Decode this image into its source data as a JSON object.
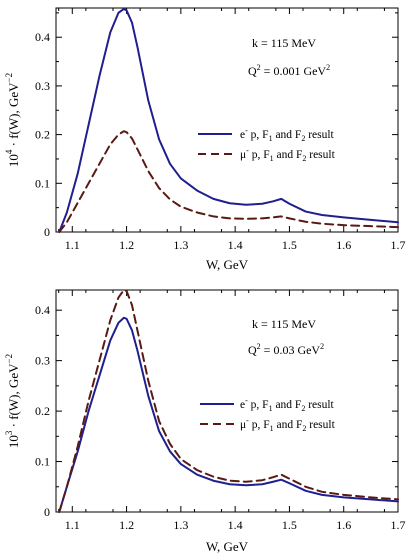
{
  "colors": {
    "ep": "#1f1f8f",
    "mup": "#5a1a14"
  },
  "chart_data": [
    {
      "type": "line",
      "xlabel": "W, GeV",
      "ylabel_prefix": "10",
      "ylabel_exp": "4",
      "ylabel_rest": " · f(W),  GeV",
      "ylabel_unit_exp": "−2",
      "xlim": [
        1.07,
        1.7
      ],
      "ylim": [
        0,
        0.46
      ],
      "xticks": [
        1.1,
        1.2,
        1.3,
        1.4,
        1.5,
        1.6,
        1.7
      ],
      "xtick_labels": [
        "1.1",
        "1.2",
        "1.3",
        "1.4",
        "1.5",
        "1.6",
        "1.7"
      ],
      "yticks": [
        0,
        0.1,
        0.2,
        0.3,
        0.4
      ],
      "ytick_labels": [
        "0",
        "0.1",
        "0.2",
        "0.3",
        "0.4"
      ],
      "annotations": {
        "k": "k = 115 MeV",
        "q_pre": "Q",
        "q_sup": "2",
        "q_mid": " = 0.001 GeV",
        "q_unit_sup": "2"
      },
      "series": [
        {
          "name": "e⁻ p, F₁ and F₂ result",
          "legend_a": "e",
          "legend_a_sup": "-",
          "legend_b": " p, F",
          "legend_b_sub": "1",
          "legend_c": " and F",
          "legend_c_sub": "2",
          "legend_d": " result",
          "color": "#1f1f8f",
          "dash": "solid",
          "x": [
            1.076,
            1.09,
            1.11,
            1.13,
            1.15,
            1.17,
            1.185,
            1.195,
            1.2,
            1.21,
            1.22,
            1.24,
            1.26,
            1.28,
            1.3,
            1.33,
            1.36,
            1.39,
            1.42,
            1.45,
            1.47,
            1.485,
            1.5,
            1.53,
            1.56,
            1.6,
            1.65,
            1.7
          ],
          "y": [
            0.0,
            0.04,
            0.12,
            0.22,
            0.32,
            0.41,
            0.45,
            0.458,
            0.455,
            0.43,
            0.38,
            0.27,
            0.19,
            0.14,
            0.11,
            0.085,
            0.068,
            0.059,
            0.056,
            0.058,
            0.063,
            0.068,
            0.058,
            0.042,
            0.035,
            0.03,
            0.025,
            0.02
          ]
        },
        {
          "name": "μ⁻ p, F₁ and F₂ result",
          "legend_a": "μ",
          "legend_a_sup": "-",
          "legend_b": " p, F",
          "legend_b_sub": "1",
          "legend_c": " and F",
          "legend_c_sub": "2",
          "legend_d": " result",
          "color": "#5a1a14",
          "dash": "dashed",
          "x": [
            1.076,
            1.09,
            1.11,
            1.13,
            1.15,
            1.17,
            1.185,
            1.195,
            1.2,
            1.21,
            1.22,
            1.24,
            1.26,
            1.28,
            1.3,
            1.33,
            1.36,
            1.39,
            1.42,
            1.45,
            1.47,
            1.485,
            1.5,
            1.53,
            1.56,
            1.6,
            1.65,
            1.7
          ],
          "y": [
            0.0,
            0.02,
            0.06,
            0.1,
            0.14,
            0.18,
            0.2,
            0.207,
            0.205,
            0.192,
            0.17,
            0.125,
            0.09,
            0.067,
            0.052,
            0.04,
            0.032,
            0.028,
            0.027,
            0.028,
            0.03,
            0.032,
            0.028,
            0.021,
            0.017,
            0.014,
            0.012,
            0.01
          ]
        }
      ]
    },
    {
      "type": "line",
      "xlabel": "W, GeV",
      "ylabel_prefix": "10",
      "ylabel_exp": "3",
      "ylabel_rest": " · f(W),  GeV",
      "ylabel_unit_exp": "−2",
      "xlim": [
        1.07,
        1.7
      ],
      "ylim": [
        0,
        0.44
      ],
      "xticks": [
        1.1,
        1.2,
        1.3,
        1.4,
        1.5,
        1.6,
        1.7
      ],
      "xtick_labels": [
        "1.1",
        "1.2",
        "1.3",
        "1.4",
        "1.5",
        "1.6",
        "1.7"
      ],
      "yticks": [
        0,
        0.1,
        0.2,
        0.3,
        0.4
      ],
      "ytick_labels": [
        "0",
        "0.1",
        "0.2",
        "0.3",
        "0.4"
      ],
      "annotations": {
        "k": "k = 115 MeV",
        "q_pre": "Q",
        "q_sup": "2",
        "q_mid": " = 0.03 GeV",
        "q_unit_sup": "2"
      },
      "series": [
        {
          "name": "e⁻ p, F₁ and F₂ result",
          "legend_a": "e",
          "legend_a_sup": "-",
          "legend_b": " p, F",
          "legend_b_sub": "1",
          "legend_c": " and F",
          "legend_c_sub": "2",
          "legend_d": " result",
          "color": "#1f1f8f",
          "dash": "solid",
          "x": [
            1.076,
            1.09,
            1.11,
            1.13,
            1.15,
            1.17,
            1.185,
            1.195,
            1.2,
            1.21,
            1.22,
            1.24,
            1.26,
            1.28,
            1.3,
            1.33,
            1.36,
            1.39,
            1.42,
            1.45,
            1.47,
            1.485,
            1.5,
            1.53,
            1.56,
            1.6,
            1.65,
            1.7
          ],
          "y": [
            0.0,
            0.05,
            0.12,
            0.2,
            0.27,
            0.34,
            0.375,
            0.385,
            0.383,
            0.36,
            0.32,
            0.23,
            0.16,
            0.12,
            0.095,
            0.074,
            0.062,
            0.055,
            0.053,
            0.055,
            0.06,
            0.064,
            0.057,
            0.042,
            0.034,
            0.029,
            0.025,
            0.021
          ]
        },
        {
          "name": "μ⁻ p, F₁ and F₂ result",
          "legend_a": "μ",
          "legend_a_sup": "-",
          "legend_b": " p, F",
          "legend_b_sub": "1",
          "legend_c": " and F",
          "legend_c_sub": "2",
          "legend_d": " result",
          "color": "#5a1a14",
          "dash": "dashed",
          "x": [
            1.076,
            1.09,
            1.11,
            1.13,
            1.15,
            1.17,
            1.185,
            1.195,
            1.2,
            1.21,
            1.22,
            1.24,
            1.26,
            1.28,
            1.3,
            1.33,
            1.36,
            1.39,
            1.42,
            1.45,
            1.47,
            1.485,
            1.5,
            1.53,
            1.56,
            1.6,
            1.65,
            1.7
          ],
          "y": [
            0.0,
            0.05,
            0.13,
            0.22,
            0.3,
            0.38,
            0.425,
            0.44,
            0.438,
            0.41,
            0.36,
            0.26,
            0.18,
            0.135,
            0.105,
            0.083,
            0.07,
            0.062,
            0.06,
            0.063,
            0.069,
            0.074,
            0.066,
            0.05,
            0.04,
            0.034,
            0.029,
            0.025
          ]
        }
      ]
    }
  ]
}
